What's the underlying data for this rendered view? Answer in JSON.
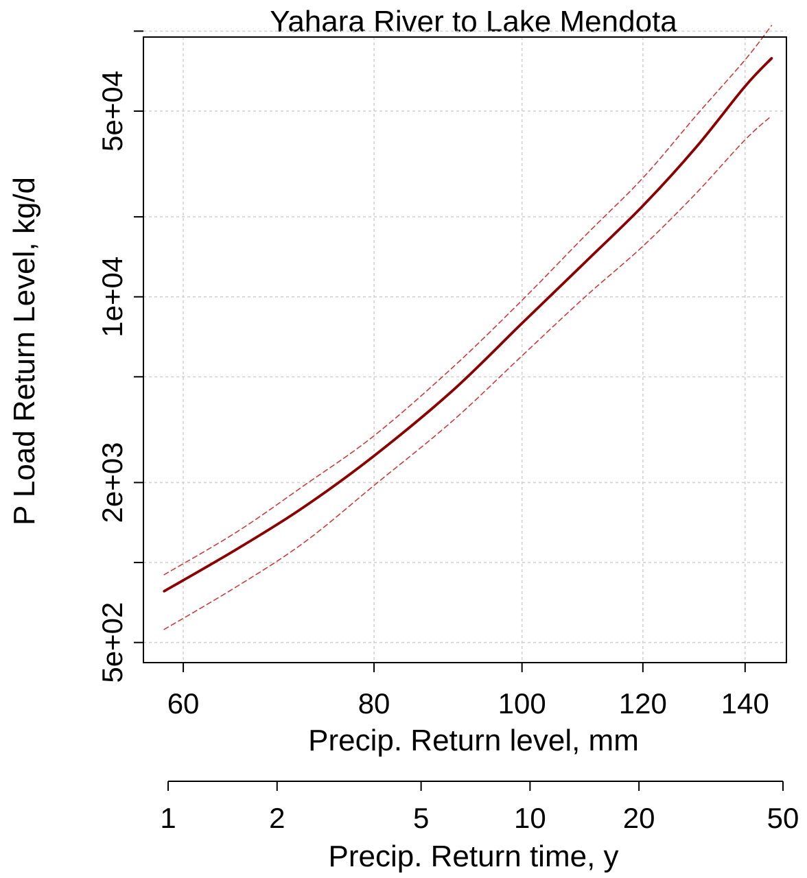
{
  "chart_data": {
    "type": "line",
    "title": "Yahara River to Lake Mendota",
    "xlabel": "Precip. Return level, mm",
    "ylabel": "P Load Return Level, kg/d",
    "x_scale": "log",
    "y_scale": "log",
    "xlim": [
      56.5,
      149
    ],
    "ylim": [
      420,
      95000
    ],
    "x_ticks": [
      60,
      80,
      100,
      120,
      140
    ],
    "x_tick_labels": [
      "60",
      "80",
      "100",
      "120",
      "140"
    ],
    "y_ticks": [
      500,
      1000,
      2000,
      5000,
      10000,
      20000,
      50000
    ],
    "y_tick_labels": [
      "5e+02",
      "",
      "2e+03",
      "",
      "1e+04",
      "",
      "5e+04"
    ],
    "y_minor_ticks": [
      100000
    ],
    "grid": true,
    "secondary_axis": {
      "label": "Precip. Return time, y",
      "scale": "log",
      "range": [
        1,
        50
      ],
      "ticks": [
        1,
        2,
        5,
        10,
        20,
        50
      ],
      "tick_labels": [
        "1",
        "2",
        "5",
        "10",
        "20",
        "50"
      ]
    },
    "series": [
      {
        "role": "estimate",
        "style": "solid",
        "color": "#8b0000",
        "x": [
          58.3,
          65,
          72,
          80,
          90,
          100,
          110,
          120,
          130,
          140,
          145.7
        ],
        "y": [
          780,
          1120,
          1620,
          2520,
          4420,
          7950,
          13500,
          22000,
          36500,
          62000,
          79000
        ]
      },
      {
        "role": "upper bound",
        "style": "dashed",
        "color": "#cd3a3a",
        "x": [
          58.3,
          65,
          72,
          80,
          90,
          100,
          110,
          120,
          130,
          140,
          145.7
        ],
        "y": [
          900,
          1300,
          1950,
          3000,
          5400,
          9700,
          17000,
          28000,
          48000,
          78000,
          105000
        ]
      },
      {
        "role": "lower bound",
        "style": "dashed",
        "color": "#cd3a3a",
        "x": [
          58.3,
          65,
          72,
          80,
          90,
          100,
          110,
          120,
          130,
          140,
          145.7
        ],
        "y": [
          560,
          810,
          1190,
          1950,
          3400,
          6000,
          10000,
          15500,
          24500,
          39000,
          48000
        ]
      }
    ]
  }
}
